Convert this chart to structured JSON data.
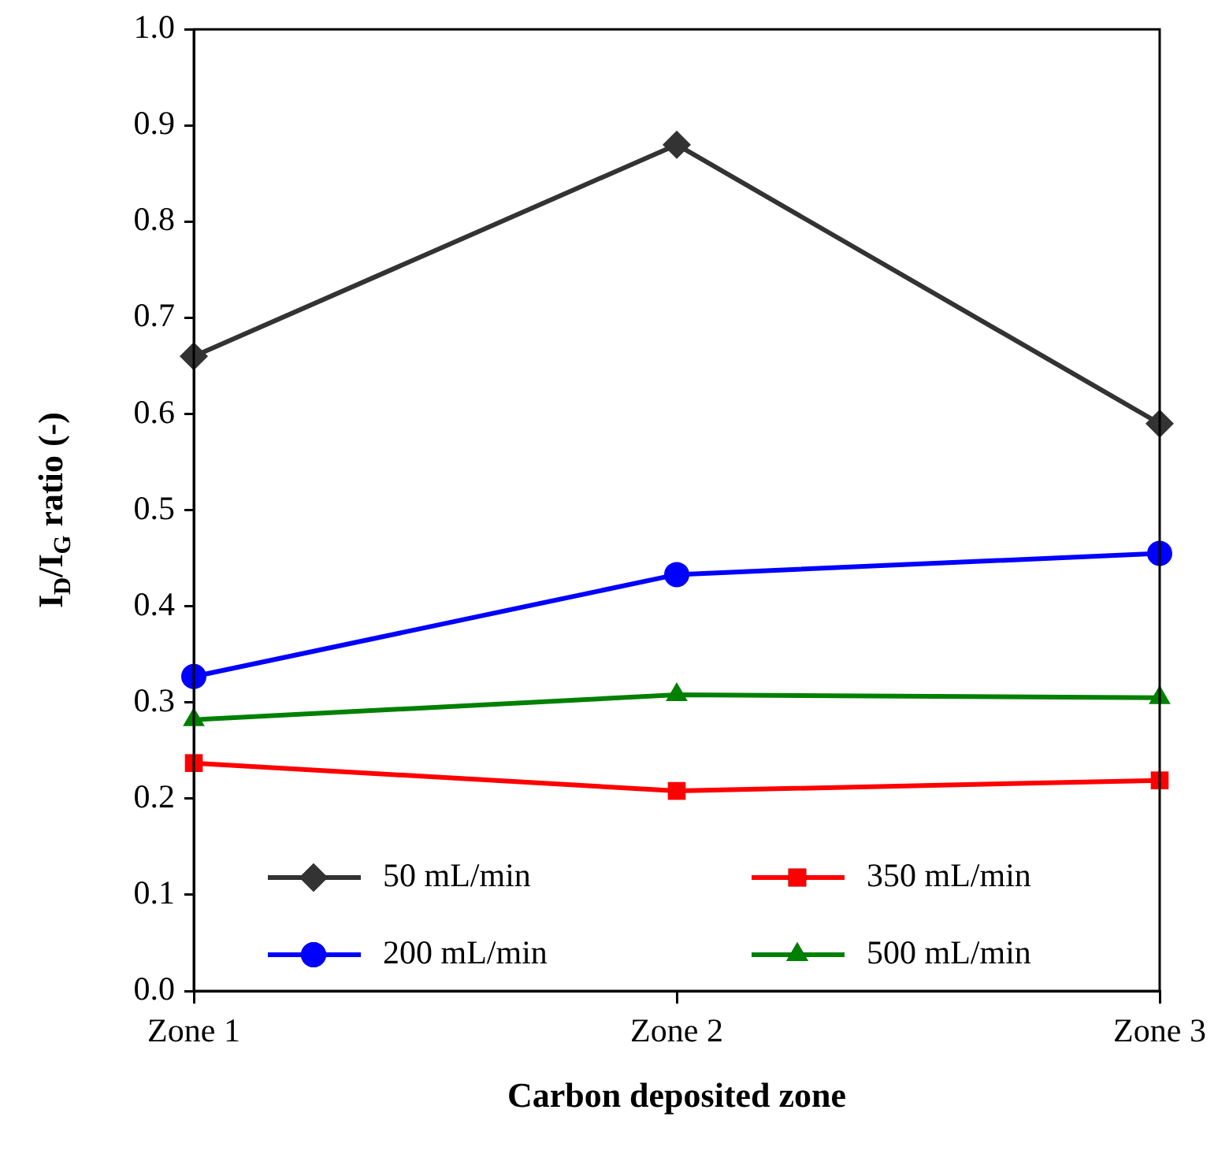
{
  "chart_data": {
    "type": "line",
    "xlabel": "Carbon deposited zone",
    "ylabel": "I$_{D}$/I$_{G}$ ratio (-)",
    "categories": [
      "Zone 1",
      "Zone 2",
      "Zone 3"
    ],
    "series": [
      {
        "name": "50 mL/min",
        "color": "#333333",
        "marker": "diamond",
        "values": [
          0.66,
          0.88,
          0.59
        ]
      },
      {
        "name": "350 mL/min",
        "color": "#ff0000",
        "marker": "square",
        "values": [
          0.237,
          0.208,
          0.219
        ]
      },
      {
        "name": "200 mL/min",
        "color": "#0000ff",
        "marker": "circle",
        "values": [
          0.327,
          0.433,
          0.455
        ]
      },
      {
        "name": "500 mL/min",
        "color": "#008000",
        "marker": "triangle",
        "values": [
          0.282,
          0.308,
          0.305
        ]
      }
    ],
    "ylim": [
      0,
      1
    ],
    "yticks": [
      {
        "value": 0,
        "label": "0.0"
      },
      0.1,
      0.2,
      0.3,
      0.4,
      0.5,
      0.6,
      0.7,
      0.8,
      0.9,
      {
        "value": 1,
        "label": "1.0"
      }
    ],
    "legend": "bottom",
    "line_style": "solid"
  }
}
